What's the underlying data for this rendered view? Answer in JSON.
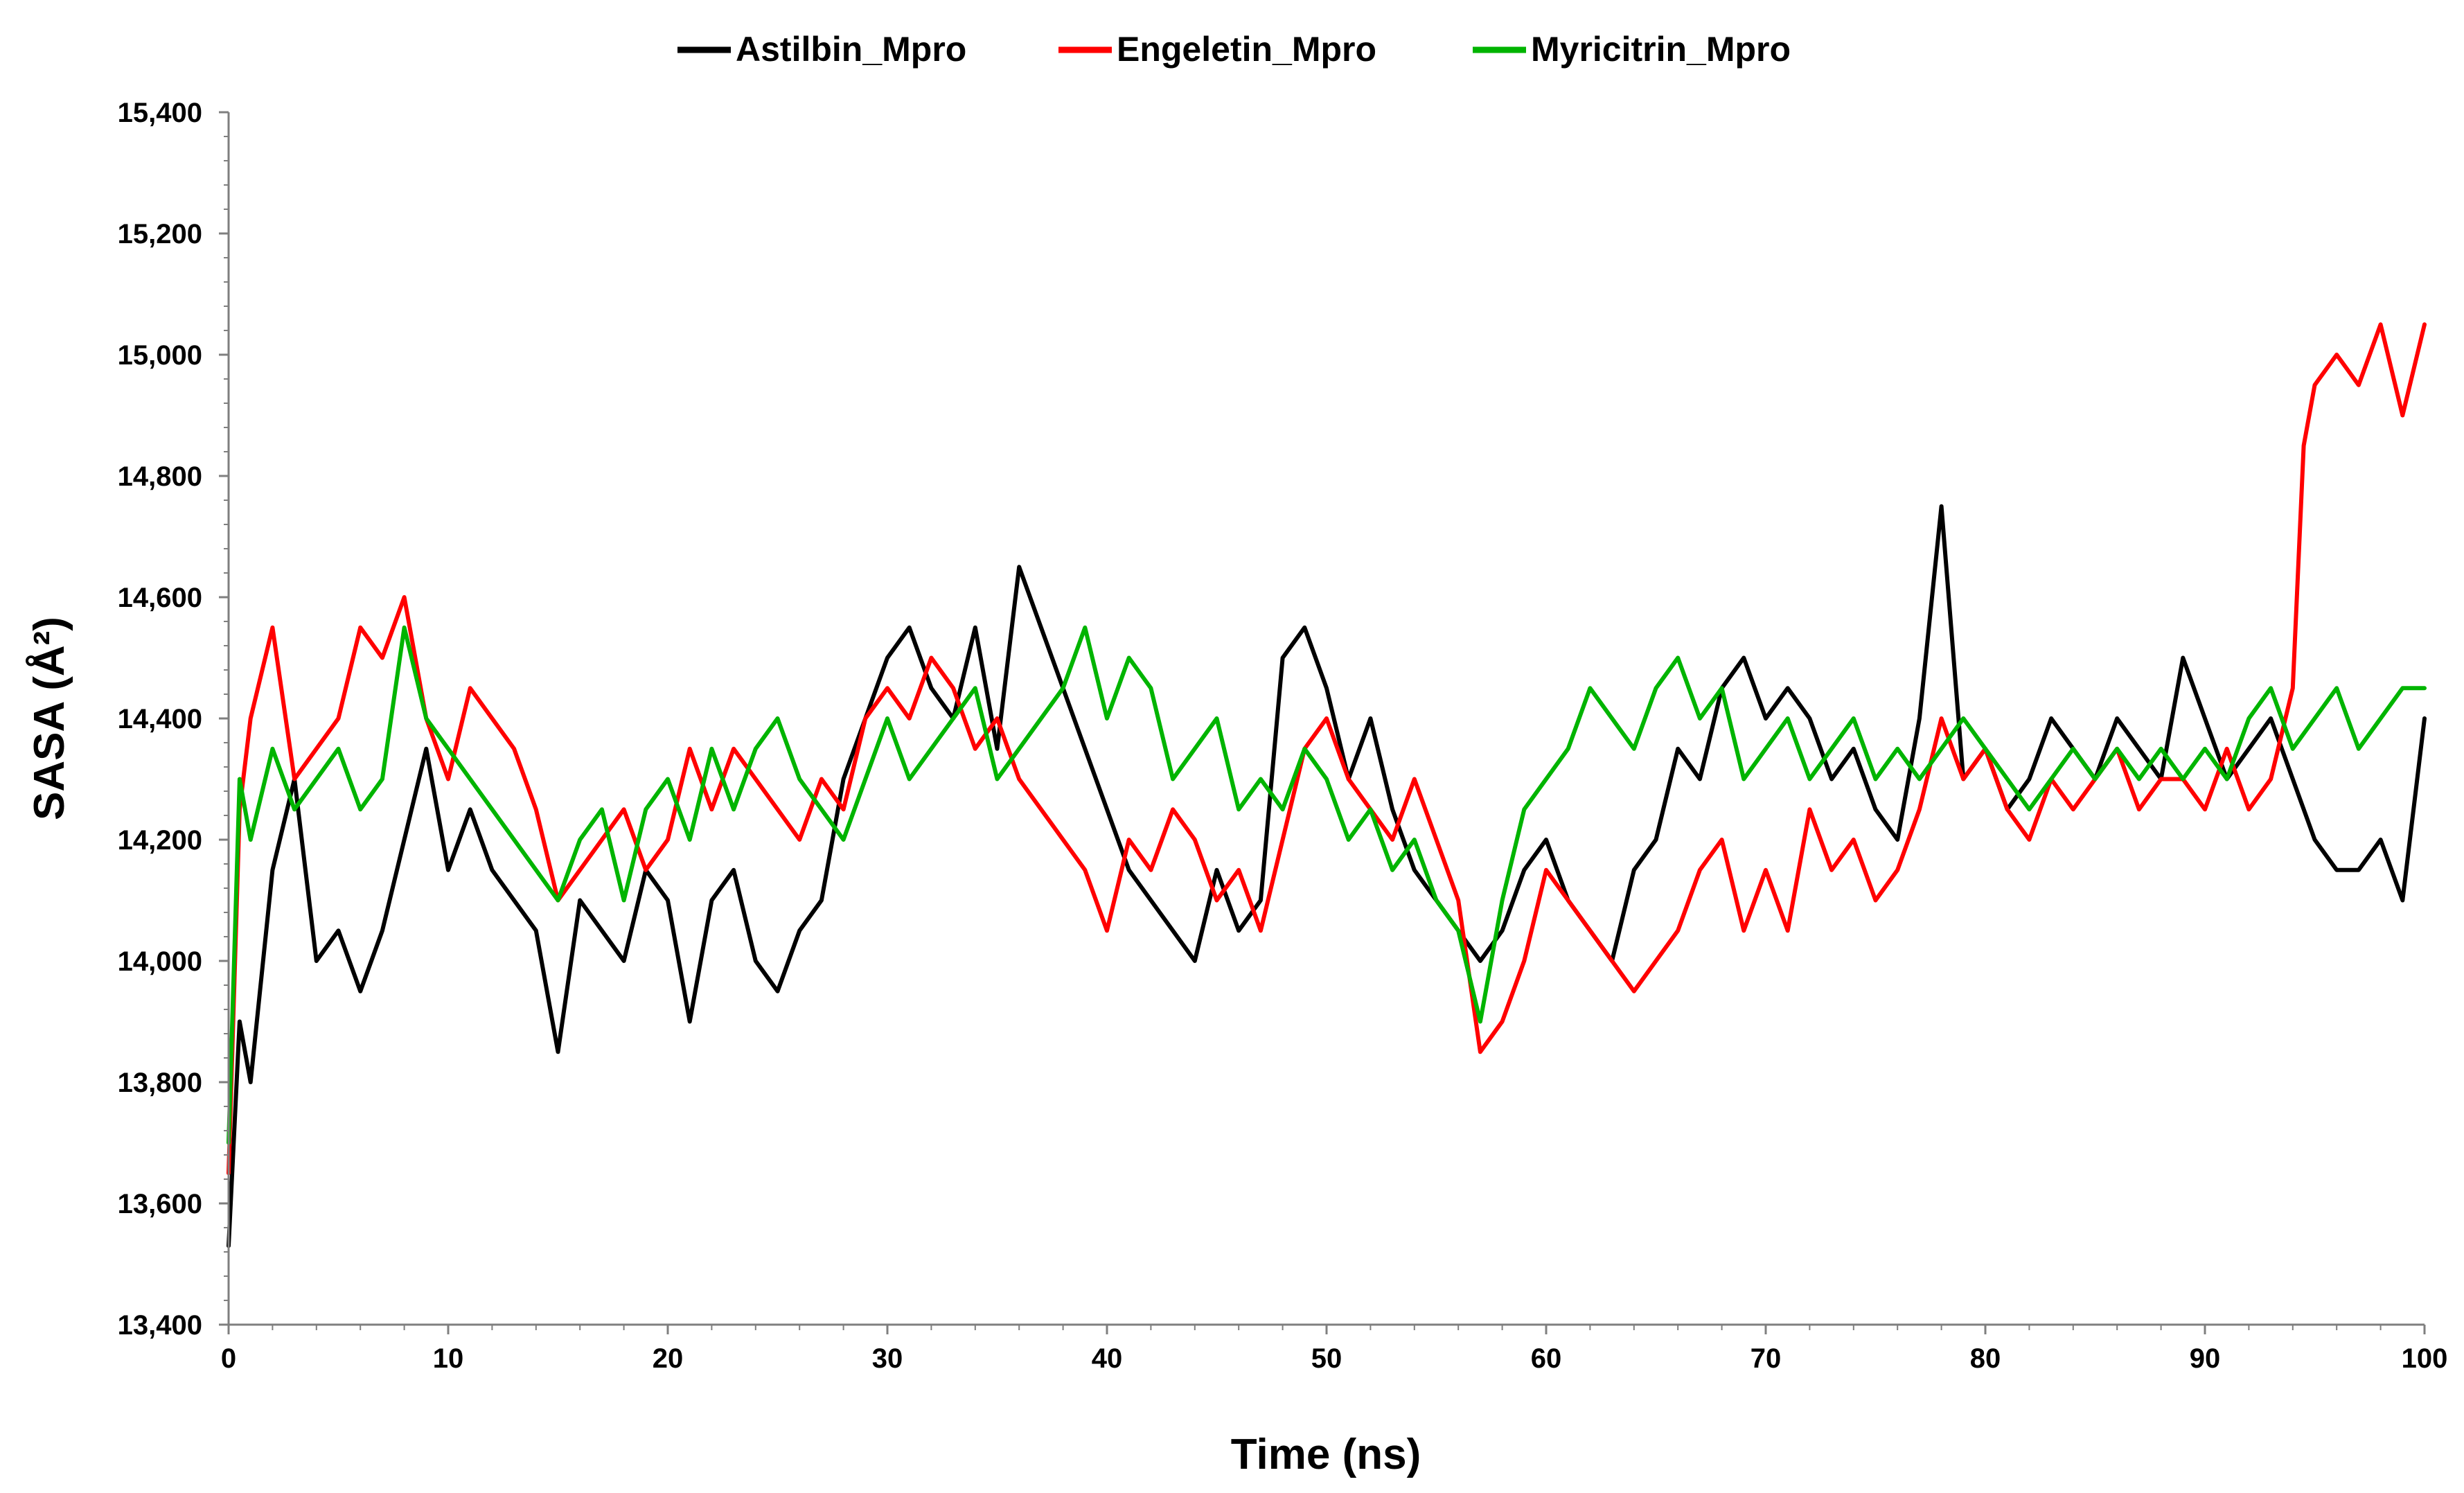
{
  "chart_data": {
    "type": "line",
    "title": "",
    "xlabel": "Time (ns)",
    "ylabel": "SASA (Å²)",
    "xlim": [
      0,
      100
    ],
    "ylim": [
      13400,
      15400
    ],
    "x_ticks": [
      0,
      10,
      20,
      30,
      40,
      50,
      60,
      70,
      80,
      90,
      100
    ],
    "x_tick_labels": [
      "0",
      "10",
      "20",
      "30",
      "40",
      "50",
      "60",
      "70",
      "80",
      "90",
      "100"
    ],
    "y_ticks": [
      13400,
      13600,
      13800,
      14000,
      14200,
      14400,
      14600,
      14800,
      15000,
      15200,
      15400
    ],
    "y_tick_labels": [
      "13,400",
      "13,600",
      "13,800",
      "14,000",
      "14,200",
      "14,400",
      "14,600",
      "14,800",
      "15,000",
      "15,200",
      "15,400"
    ],
    "grid": false,
    "legend_position": "top-center",
    "series": [
      {
        "name": "Astilbin_Mpro",
        "color": "#000000",
        "x": [
          0,
          0.5,
          1,
          2,
          3,
          4,
          5,
          6,
          7,
          8,
          9,
          10,
          11,
          12,
          13,
          14,
          15,
          16,
          17,
          18,
          19,
          20,
          21,
          22,
          23,
          24,
          25,
          26,
          27,
          28,
          29,
          30,
          31,
          32,
          33,
          34,
          35,
          36,
          37,
          38,
          39,
          40,
          41,
          42,
          43,
          44,
          45,
          46,
          47,
          48,
          49,
          50,
          51,
          52,
          53,
          54,
          55,
          56,
          57,
          58,
          59,
          60,
          61,
          62,
          63,
          64,
          65,
          66,
          67,
          68,
          69,
          70,
          71,
          72,
          73,
          74,
          75,
          76,
          77,
          78,
          79,
          80,
          81,
          82,
          83,
          84,
          85,
          86,
          87,
          88,
          89,
          90,
          91,
          92,
          93,
          94,
          95,
          96,
          97,
          98,
          99,
          100
        ],
        "values": [
          13530,
          13900,
          13800,
          14150,
          14300,
          14000,
          14050,
          13950,
          14050,
          14200,
          14350,
          14150,
          14250,
          14150,
          14100,
          14050,
          13850,
          14100,
          14050,
          14000,
          14150,
          14100,
          13900,
          14100,
          14150,
          14000,
          13950,
          14050,
          14100,
          14300,
          14400,
          14500,
          14550,
          14450,
          14400,
          14550,
          14350,
          14650,
          14550,
          14450,
          14350,
          14250,
          14150,
          14100,
          14050,
          14000,
          14150,
          14050,
          14100,
          14500,
          14550,
          14450,
          14300,
          14400,
          14250,
          14150,
          14100,
          14050,
          14000,
          14050,
          14150,
          14200,
          14100,
          14050,
          14000,
          14150,
          14200,
          14350,
          14300,
          14450,
          14500,
          14400,
          14450,
          14400,
          14300,
          14350,
          14250,
          14200,
          14400,
          14750,
          14300,
          14350,
          14250,
          14300,
          14400,
          14350,
          14300,
          14400,
          14350,
          14300,
          14500,
          14400,
          14300,
          14350,
          14400,
          14300,
          14200,
          14150,
          14150,
          14200,
          14100,
          14400
        ]
      },
      {
        "name": "Engeletin_Mpro",
        "color": "#ff0000",
        "x": [
          0,
          0.5,
          1,
          2,
          3,
          4,
          5,
          6,
          7,
          8,
          9,
          10,
          11,
          12,
          13,
          14,
          15,
          16,
          17,
          18,
          19,
          20,
          21,
          22,
          23,
          24,
          25,
          26,
          27,
          28,
          29,
          30,
          31,
          32,
          33,
          34,
          35,
          36,
          37,
          38,
          39,
          40,
          41,
          42,
          43,
          44,
          45,
          46,
          47,
          48,
          49,
          50,
          51,
          52,
          53,
          54,
          55,
          56,
          57,
          58,
          59,
          60,
          61,
          62,
          63,
          64,
          65,
          66,
          67,
          68,
          69,
          70,
          71,
          72,
          73,
          74,
          75,
          76,
          77,
          78,
          79,
          80,
          81,
          82,
          83,
          84,
          85,
          86,
          87,
          88,
          89,
          90,
          91,
          92,
          93,
          94,
          94.5,
          95,
          96,
          97,
          98,
          99,
          100
        ],
        "values": [
          13650,
          14250,
          14400,
          14550,
          14300,
          14350,
          14400,
          14550,
          14500,
          14600,
          14400,
          14300,
          14450,
          14400,
          14350,
          14250,
          14100,
          14150,
          14200,
          14250,
          14150,
          14200,
          14350,
          14250,
          14350,
          14300,
          14250,
          14200,
          14300,
          14250,
          14400,
          14450,
          14400,
          14500,
          14450,
          14350,
          14400,
          14300,
          14250,
          14200,
          14150,
          14050,
          14200,
          14150,
          14250,
          14200,
          14100,
          14150,
          14050,
          14200,
          14350,
          14400,
          14300,
          14250,
          14200,
          14300,
          14200,
          14100,
          13850,
          13900,
          14000,
          14150,
          14100,
          14050,
          14000,
          13950,
          14000,
          14050,
          14150,
          14200,
          14050,
          14150,
          14050,
          14250,
          14150,
          14200,
          14100,
          14150,
          14250,
          14400,
          14300,
          14350,
          14250,
          14200,
          14300,
          14250,
          14300,
          14350,
          14250,
          14300,
          14300,
          14250,
          14350,
          14250,
          14300,
          14450,
          14850,
          14950,
          15000,
          14950,
          15050,
          14900,
          15050
        ]
      },
      {
        "name": "Myricitrin_Mpro",
        "color": "#00b400",
        "x": [
          0,
          0.5,
          1,
          2,
          3,
          4,
          5,
          6,
          7,
          8,
          9,
          10,
          11,
          12,
          13,
          14,
          15,
          16,
          17,
          18,
          19,
          20,
          21,
          22,
          23,
          24,
          25,
          26,
          27,
          28,
          29,
          30,
          31,
          32,
          33,
          34,
          35,
          36,
          37,
          38,
          39,
          40,
          41,
          42,
          43,
          44,
          45,
          46,
          47,
          48,
          49,
          50,
          51,
          52,
          53,
          54,
          55,
          56,
          57,
          58,
          59,
          60,
          61,
          62,
          63,
          64,
          65,
          66,
          67,
          68,
          69,
          70,
          71,
          72,
          73,
          74,
          75,
          76,
          77,
          78,
          79,
          80,
          81,
          82,
          83,
          84,
          85,
          86,
          87,
          88,
          89,
          90,
          91,
          92,
          93,
          94,
          95,
          96,
          97,
          98,
          99,
          100
        ],
        "values": [
          13700,
          14300,
          14200,
          14350,
          14250,
          14300,
          14350,
          14250,
          14300,
          14550,
          14400,
          14350,
          14300,
          14250,
          14200,
          14150,
          14100,
          14200,
          14250,
          14100,
          14250,
          14300,
          14200,
          14350,
          14250,
          14350,
          14400,
          14300,
          14250,
          14200,
          14300,
          14400,
          14300,
          14350,
          14400,
          14450,
          14300,
          14350,
          14400,
          14450,
          14550,
          14400,
          14500,
          14450,
          14300,
          14350,
          14400,
          14250,
          14300,
          14250,
          14350,
          14300,
          14200,
          14250,
          14150,
          14200,
          14100,
          14050,
          13900,
          14100,
          14250,
          14300,
          14350,
          14450,
          14400,
          14350,
          14450,
          14500,
          14400,
          14450,
          14300,
          14350,
          14400,
          14300,
          14350,
          14400,
          14300,
          14350,
          14300,
          14350,
          14400,
          14350,
          14300,
          14250,
          14300,
          14350,
          14300,
          14350,
          14300,
          14350,
          14300,
          14350,
          14300,
          14400,
          14450,
          14350,
          14400,
          14450,
          14350,
          14400,
          14450,
          14450
        ]
      }
    ]
  }
}
